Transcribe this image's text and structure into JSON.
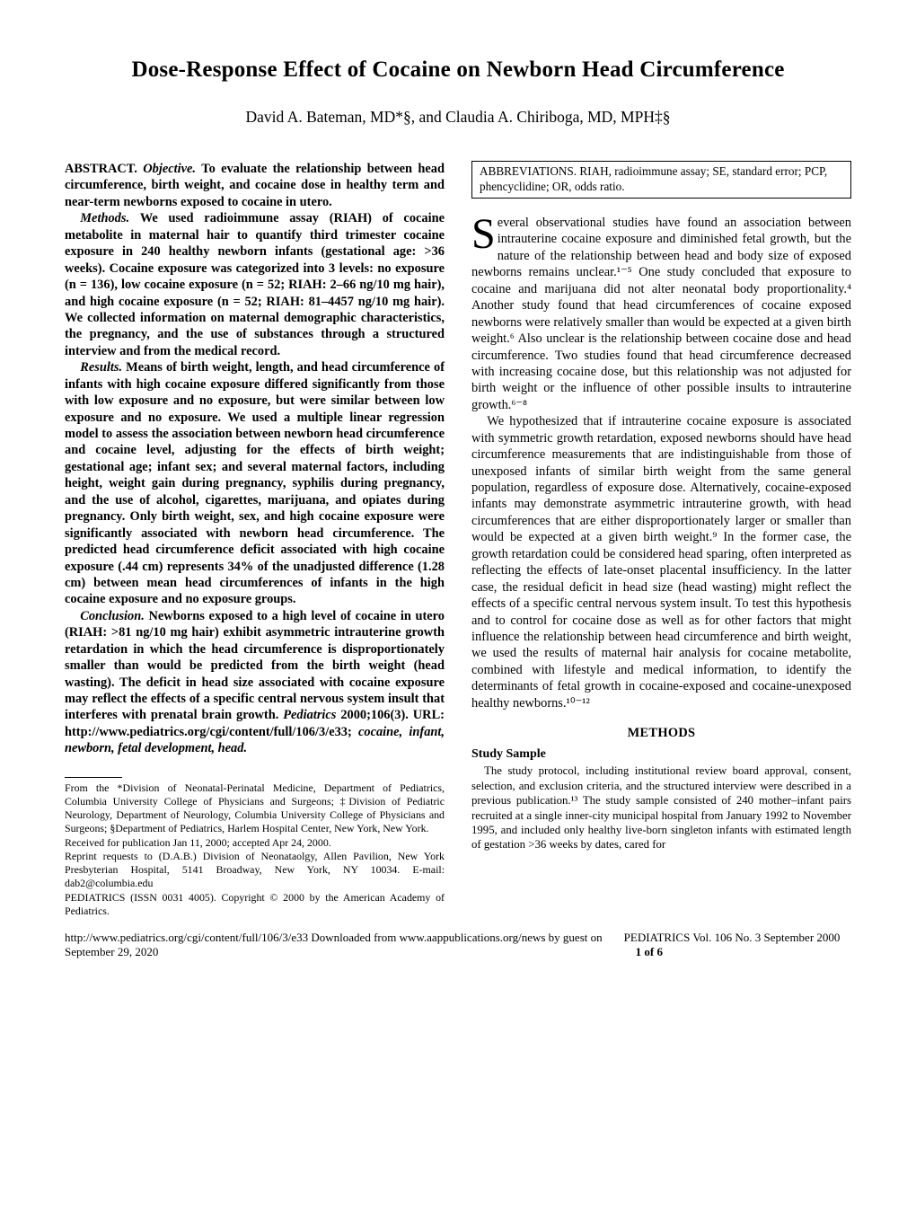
{
  "title": "Dose-Response Effect of Cocaine on Newborn Head Circumference",
  "authors": "David A. Bateman, MD*§, and Claudia A. Chiriboga, MD, MPH‡§",
  "abstract": {
    "runhead": "ABSTRACT.",
    "objective_label": "Objective.",
    "objective": " To evaluate the relationship between head circumference, birth weight, and cocaine dose in healthy term and near-term newborns exposed to cocaine in utero.",
    "methods_label": "Methods.",
    "methods": " We used radioimmune assay (RIAH) of cocaine metabolite in maternal hair to quantify third trimester cocaine exposure in 240 healthy newborn infants (gestational age: >36 weeks). Cocaine exposure was categorized into 3 levels: no exposure (n = 136), low cocaine exposure (n = 52; RIAH: 2–66 ng/10 mg hair), and high cocaine exposure (n = 52; RIAH: 81–4457 ng/10 mg hair). We collected information on maternal demographic characteristics, the pregnancy, and the use of substances through a structured interview and from the medical record.",
    "results_label": "Results.",
    "results": " Means of birth weight, length, and head circumference of infants with high cocaine exposure differed significantly from those with low exposure and no exposure, but were similar between low exposure and no exposure. We used a multiple linear regression model to assess the association between newborn head circumference and cocaine level, adjusting for the effects of birth weight; gestational age; infant sex; and several maternal factors, including height, weight gain during pregnancy, syphilis during pregnancy, and the use of alcohol, cigarettes, marijuana, and opiates during pregnancy. Only birth weight, sex, and high cocaine exposure were significantly associated with newborn head circumference. The predicted head circumference deficit associated with high cocaine exposure (.44 cm) represents 34% of the unadjusted difference (1.28 cm) between mean head circumferences of infants in the high cocaine exposure and no exposure groups.",
    "conclusion_label": "Conclusion.",
    "conclusion": " Newborns exposed to a high level of cocaine in utero (RIAH: >81 ng/10 mg hair) exhibit asymmetric intrauterine growth retardation in which the head circumference is disproportionately smaller than would be predicted from the birth weight (head wasting). The deficit in head size associated with cocaine exposure may reflect the effects of a specific central nervous system insult that interferes with prenatal brain growth.",
    "citation_journal": "Pediatrics",
    "citation_rest": " 2000;106(3). URL: http://www.pediatrics.org/cgi/content/full/106/3/e33; ",
    "keywords": "cocaine, infant, newborn, fetal development, head."
  },
  "affiliation": {
    "from": "From the *Division of Neonatal-Perinatal Medicine, Department of Pediatrics, Columbia University College of Physicians and Surgeons; ‡Division of Pediatric Neurology, Department of Neurology, Columbia University College of Physicians and Surgeons; §Department of Pediatrics, Harlem Hospital Center, New York, New York.",
    "received": "Received for publication Jan 11, 2000; accepted Apr 24, 2000.",
    "reprint": "Reprint requests to (D.A.B.) Division of Neonataolgy, Allen Pavilion, New York Presbyterian Hospital, 5141 Broadway, New York, NY 10034. E-mail: dab2@columbia.edu",
    "issn": "PEDIATRICS (ISSN 0031 4005). Copyright © 2000 by the American Academy of Pediatrics."
  },
  "abbrev_box": "ABBREVIATIONS. RIAH, radioimmune assay; SE, standard error; PCP, phencyclidine; OR, odds ratio.",
  "intro": {
    "p1_first": "S",
    "p1_rest": "everal observational studies have found an association between intrauterine cocaine exposure and diminished fetal growth, but the nature of the relationship between head and body size of exposed newborns remains unclear.¹⁻⁵ One study concluded that exposure to cocaine and marijuana did not alter neonatal body proportionality.⁴ Another study found that head circumferences of cocaine exposed newborns were relatively smaller than would be expected at a given birth weight.⁶ Also unclear is the relationship between cocaine dose and head circumference. Two studies found that head circumference decreased with increasing cocaine dose, but this relationship was not adjusted for birth weight or the influence of other possible insults to intrauterine growth.⁶⁻⁸",
    "p2": "We hypothesized that if intrauterine cocaine exposure is associated with symmetric growth retardation, exposed newborns should have head circumference measurements that are indistinguishable from those of unexposed infants of similar birth weight from the same general population, regardless of exposure dose. Alternatively, cocaine-exposed infants may demonstrate asymmetric intrauterine growth, with head circumferences that are either disproportionately larger or smaller than would be expected at a given birth weight.⁹ In the former case, the growth retardation could be considered head sparing, often interpreted as reflecting the effects of late-onset placental insufficiency. In the latter case, the residual deficit in head size (head wasting) might reflect the effects of a specific central nervous system insult. To test this hypothesis and to control for cocaine dose as well as for other factors that might influence the relationship between head circumference and birth weight, we used the results of maternal hair analysis for cocaine metabolite, combined with lifestyle and medical information, to identify the determinants of fetal growth in cocaine-exposed and cocaine-unexposed healthy newborns.¹⁰⁻¹²"
  },
  "methods": {
    "heading": "METHODS",
    "sub1": "Study Sample",
    "sub1_body": "The study protocol, including institutional review board approval, consent, selection, and exclusion criteria, and the structured interview were described in a previous publication.¹³ The study sample consisted of 240 mother–infant pairs recruited at a single inner-city municipal hospital from January 1992 to November 1995, and included only healthy live-born singleton infants with estimated length of gestation >36 weeks by dates, cared for"
  },
  "footer": {
    "left": "http://www.pediatrics.org/cgi/content/full/106/3/e33 Downloaded from www.aappublications.org/news by guest on September 29, 2020",
    "right_prefix": "PEDIATRICS Vol. 106 No. 3 September 2000",
    "right_page": "1 of 6"
  }
}
